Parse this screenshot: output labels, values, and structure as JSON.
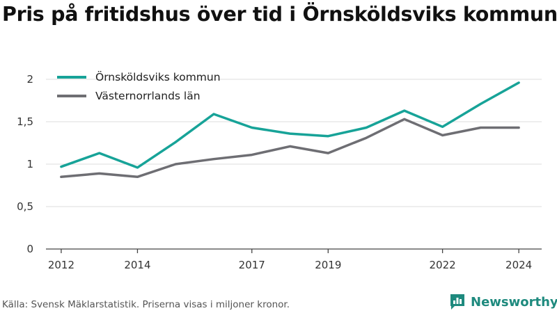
{
  "title": "Pris på fritidshus över tid i Örnsköldsviks kommun",
  "source": "Källa: Svensk Mäklarstatistik. Priserna visas i miljoner kronor.",
  "brand": {
    "name": "Newsworthy",
    "icon": "newsworthy-logo-icon",
    "color": "#1e8a7e"
  },
  "chart_data": {
    "type": "line",
    "title": "Pris på fritidshus över tid i Örnsköldsviks kommun",
    "xlabel": "",
    "ylabel": "",
    "x": [
      2012,
      2013,
      2014,
      2015,
      2016,
      2017,
      2018,
      2019,
      2020,
      2021,
      2022,
      2023,
      2024
    ],
    "xticks": [
      "2012",
      "2014",
      "2017",
      "2019",
      "2022",
      "2024"
    ],
    "xtick_values": [
      2012,
      2014,
      2017,
      2019,
      2022,
      2024
    ],
    "ylim": [
      0,
      2
    ],
    "yticks": [
      "0",
      "0,5",
      "1",
      "1,5",
      "2"
    ],
    "ytick_values": [
      0,
      0.5,
      1,
      1.5,
      2
    ],
    "grid": true,
    "legend_position": "top-left",
    "series": [
      {
        "name": "Örnsköldsviks kommun",
        "color": "#17a398",
        "values": [
          0.97,
          1.13,
          0.96,
          1.26,
          1.59,
          1.43,
          1.36,
          1.33,
          1.43,
          1.63,
          1.44,
          1.71,
          1.96
        ]
      },
      {
        "name": "Västernorrlands län",
        "color": "#6e6e73",
        "values": [
          0.85,
          0.89,
          0.85,
          1.0,
          1.06,
          1.11,
          1.21,
          1.13,
          1.31,
          1.53,
          1.34,
          1.43,
          1.43
        ]
      }
    ]
  }
}
